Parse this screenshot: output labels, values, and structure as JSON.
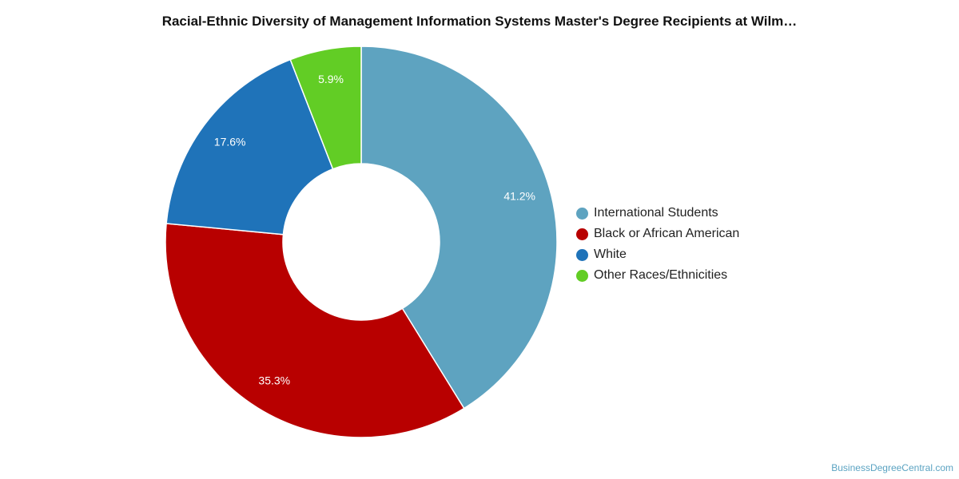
{
  "chart_data": {
    "type": "pie",
    "title": "Racial-Ethnic Diversity of Management Information Systems Master's Degree Recipients at Wilm…",
    "donut": true,
    "legend_position": "right",
    "slices": [
      {
        "label": "International Students",
        "value": 41.2,
        "value_label": "41.2%",
        "color": "#5ea3c0"
      },
      {
        "label": "Black or African American",
        "value": 35.3,
        "value_label": "35.3%",
        "color": "#b80000"
      },
      {
        "label": "White",
        "value": 17.6,
        "value_label": "17.6%",
        "color": "#1f73b9"
      },
      {
        "label": "Other Races/Ethnicities",
        "value": 5.9,
        "value_label": "5.9%",
        "color": "#62cd25"
      }
    ]
  },
  "credit": "BusinessDegreeCentral.com"
}
